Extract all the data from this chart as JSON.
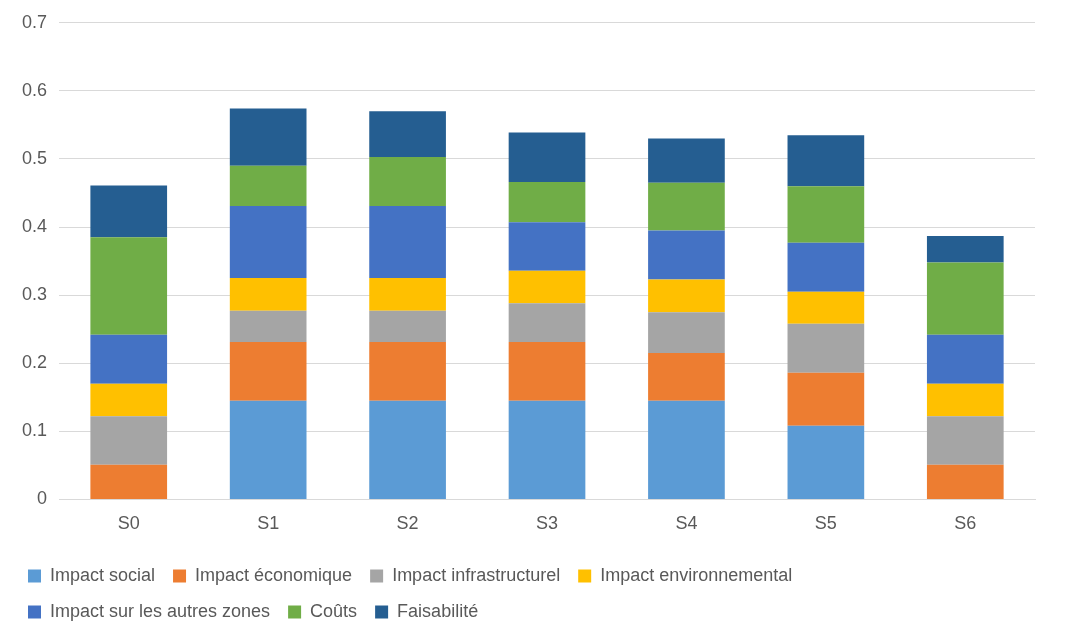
{
  "chart_data": {
    "type": "bar",
    "stacked": true,
    "categories": [
      "S0",
      "S1",
      "S2",
      "S3",
      "S4",
      "S5",
      "S6"
    ],
    "series": [
      {
        "name": "Impact social",
        "color": "#5b9bd5",
        "values": [
          0,
          0.145,
          0.145,
          0.145,
          0.145,
          0.108,
          0
        ]
      },
      {
        "name": "Impact économique",
        "color": "#ed7d31",
        "values": [
          0.051,
          0.086,
          0.086,
          0.086,
          0.07,
          0.078,
          0.051
        ]
      },
      {
        "name": "Impact infrastructurel",
        "color": "#a5a5a5",
        "values": [
          0.071,
          0.046,
          0.046,
          0.057,
          0.06,
          0.072,
          0.071
        ]
      },
      {
        "name": "Impact environnemental",
        "color": "#ffc000",
        "values": [
          0.048,
          0.048,
          0.048,
          0.048,
          0.048,
          0.047,
          0.048
        ]
      },
      {
        "name": "Impact sur les autres zones",
        "color": "#4472c4",
        "values": [
          0.072,
          0.106,
          0.106,
          0.071,
          0.072,
          0.072,
          0.072
        ]
      },
      {
        "name": "Coûts",
        "color": "#70ad47",
        "values": [
          0.143,
          0.059,
          0.072,
          0.059,
          0.07,
          0.083,
          0.106
        ]
      },
      {
        "name": "Faisabilité",
        "color": "#255e91",
        "values": [
          0.076,
          0.084,
          0.067,
          0.073,
          0.065,
          0.075,
          0.039
        ]
      }
    ],
    "ylim": [
      0,
      0.7
    ],
    "yticks": [
      0,
      0.1,
      0.2,
      0.3,
      0.4,
      0.5,
      0.6,
      0.7
    ],
    "grid": "y",
    "legend": "bottom"
  }
}
